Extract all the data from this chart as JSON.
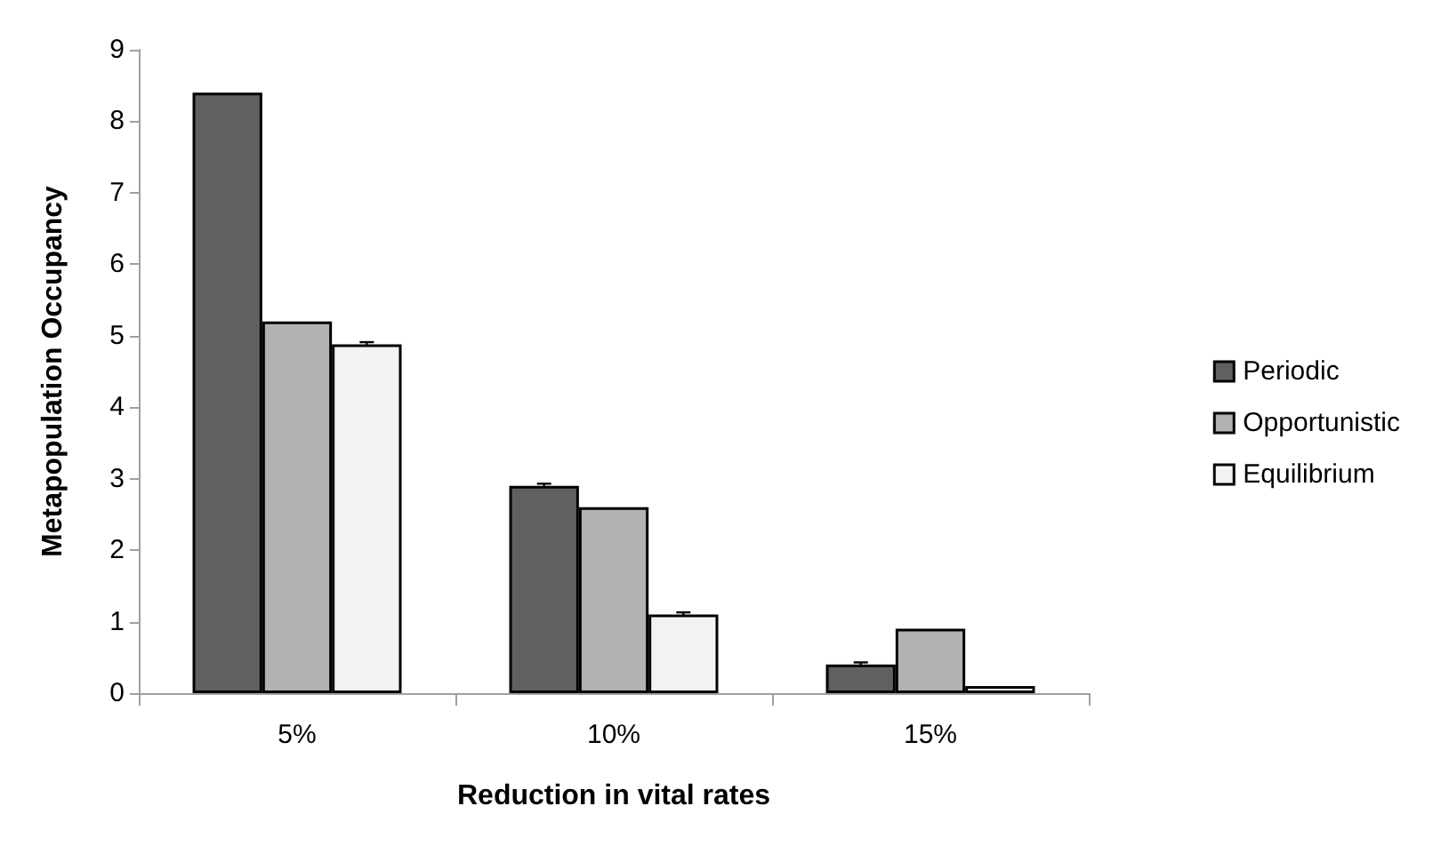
{
  "chart_data": {
    "type": "bar",
    "xlabel": "Reduction in vital rates",
    "ylabel": "Metapopulation Occupancy",
    "categories": [
      "5%",
      "10%",
      "15%"
    ],
    "series": [
      {
        "name": "Periodic",
        "color": "#606060",
        "values": [
          8.4,
          2.9,
          0.4
        ],
        "errors": [
          null,
          0.03,
          0.03
        ]
      },
      {
        "name": "Opportunistic",
        "color": "#b2b2b2",
        "values": [
          5.2,
          2.6,
          0.9
        ],
        "errors": [
          null,
          null,
          null
        ]
      },
      {
        "name": "Equilibrium",
        "color": "#f2f2f2",
        "values": [
          4.88,
          1.1,
          0.1
        ],
        "errors": [
          0.03,
          0.03,
          null
        ]
      }
    ],
    "ylim": [
      0,
      9
    ],
    "yticks": [
      0,
      1,
      2,
      3,
      4,
      5,
      6,
      7,
      8,
      9
    ],
    "grid": false,
    "legend": "right"
  }
}
